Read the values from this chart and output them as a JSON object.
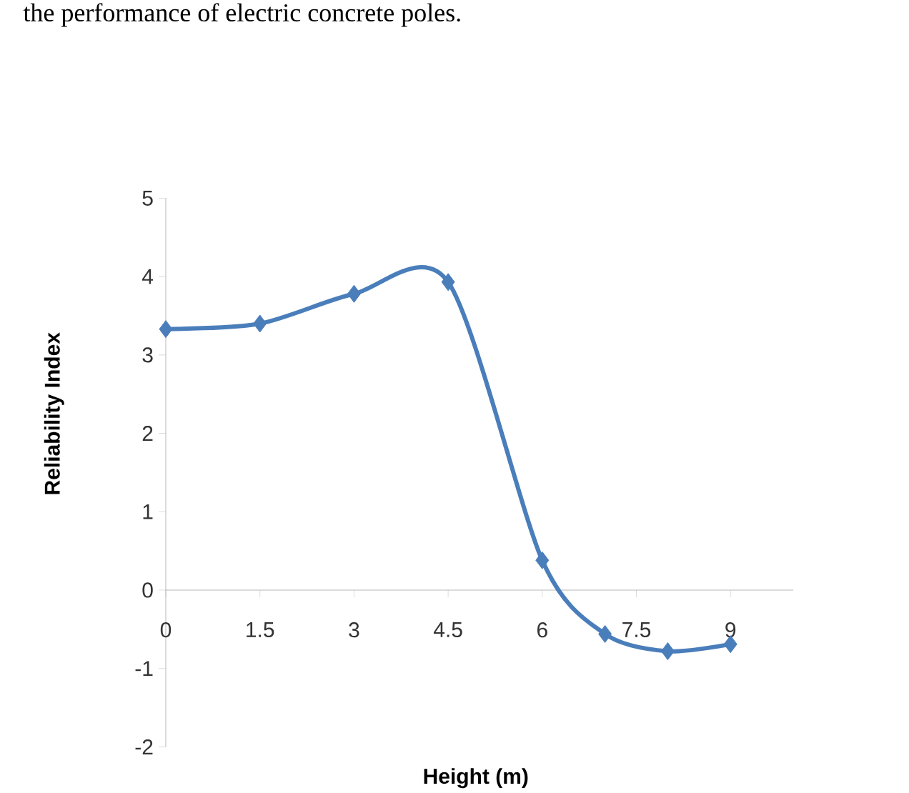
{
  "chart_data": {
    "type": "line",
    "xlabel": "**Height (m)**",
    "ylabel": "**Reliability Index**",
    "annotations": [
      "the performance of electric concrete poles."
    ],
    "x": [
      0,
      1.5,
      3,
      4.5,
      6,
      7,
      8,
      9
    ],
    "series": [
      {
        "color": "#4a7ebb",
        "values": [
          3.33,
          3.4,
          3.78,
          3.93,
          0.38,
          -0.56,
          -0.78,
          -0.69
        ]
      }
    ],
    "xlim": [
      0,
      10
    ],
    "ylim": [
      -2,
      5
    ],
    "xticks": [
      0,
      1.5,
      3,
      4.5,
      6,
      7.5,
      9
    ],
    "yticks": [
      -2,
      -1,
      0,
      1,
      2,
      3,
      4,
      5
    ],
    "marker": "diamond"
  }
}
